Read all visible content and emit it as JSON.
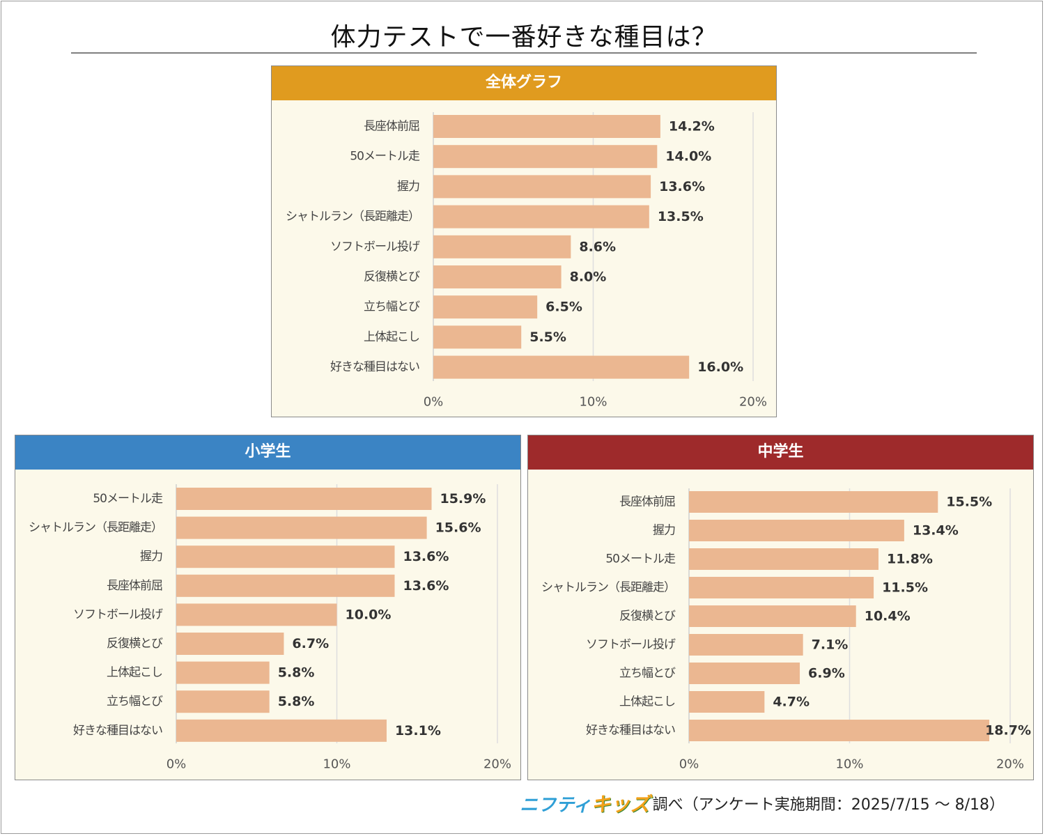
{
  "title": "体力テストで一番好きな種目は？",
  "footer": {
    "brand_part1": "ニフティ",
    "brand_part2": "キッズ",
    "note": "調べ（アンケート実施期間：2025/7/15 ～ 8/18）"
  },
  "colors": {
    "bar": "#ebb791",
    "panel_bg": "#fcf9ea",
    "overall_header": "#e09b1f",
    "elementary_header": "#3b84c4",
    "junior_header": "#9e2a2b"
  },
  "chart_data": [
    {
      "type": "bar",
      "orientation": "horizontal",
      "title": "全体グラフ",
      "categories": [
        "長座体前屈",
        "50メートル走",
        "握力",
        "シャトルラン（長距離走）",
        "ソフトボール投げ",
        "反復横とび",
        "立ち幅とび",
        "上体起こし",
        "好きな種目はない"
      ],
      "values": [
        14.2,
        14.0,
        13.6,
        13.5,
        8.6,
        8.0,
        6.5,
        5.5,
        16.0
      ],
      "value_labels": [
        "14.2%",
        "14.0%",
        "13.6%",
        "13.5%",
        "8.6%",
        "8.0%",
        "6.5%",
        "5.5%",
        "16.0%"
      ],
      "xlim": [
        0,
        20
      ],
      "x_ticks": [
        0,
        10,
        20
      ],
      "x_tick_labels": [
        "0%",
        "10%",
        "20%"
      ],
      "grid": true
    },
    {
      "type": "bar",
      "orientation": "horizontal",
      "title": "小学生",
      "categories": [
        "50メートル走",
        "シャトルラン（長距離走）",
        "握力",
        "長座体前屈",
        "ソフトボール投げ",
        "反復横とび",
        "上体起こし",
        "立ち幅とび",
        "好きな種目はない"
      ],
      "values": [
        15.9,
        15.6,
        13.6,
        13.6,
        10.0,
        6.7,
        5.8,
        5.8,
        13.1
      ],
      "value_labels": [
        "15.9%",
        "15.6%",
        "13.6%",
        "13.6%",
        "10.0%",
        "6.7%",
        "5.8%",
        "5.8%",
        "13.1%"
      ],
      "xlim": [
        0,
        20
      ],
      "x_ticks": [
        0,
        10,
        20
      ],
      "x_tick_labels": [
        "0%",
        "10%",
        "20%"
      ],
      "grid": true
    },
    {
      "type": "bar",
      "orientation": "horizontal",
      "title": "中学生",
      "categories": [
        "長座体前屈",
        "握力",
        "50メートル走",
        "シャトルラン（長距離走）",
        "反復横とび",
        "ソフトボール投げ",
        "立ち幅とび",
        "上体起こし",
        "好きな種目はない"
      ],
      "values": [
        15.5,
        13.4,
        11.8,
        11.5,
        10.4,
        7.1,
        6.9,
        4.7,
        18.7
      ],
      "value_labels": [
        "15.5%",
        "13.4%",
        "11.8%",
        "11.5%",
        "10.4%",
        "7.1%",
        "6.9%",
        "4.7%",
        "18.7%"
      ],
      "xlim": [
        0,
        20
      ],
      "x_ticks": [
        0,
        10,
        20
      ],
      "x_tick_labels": [
        "0%",
        "10%",
        "20%"
      ],
      "grid": true
    }
  ]
}
